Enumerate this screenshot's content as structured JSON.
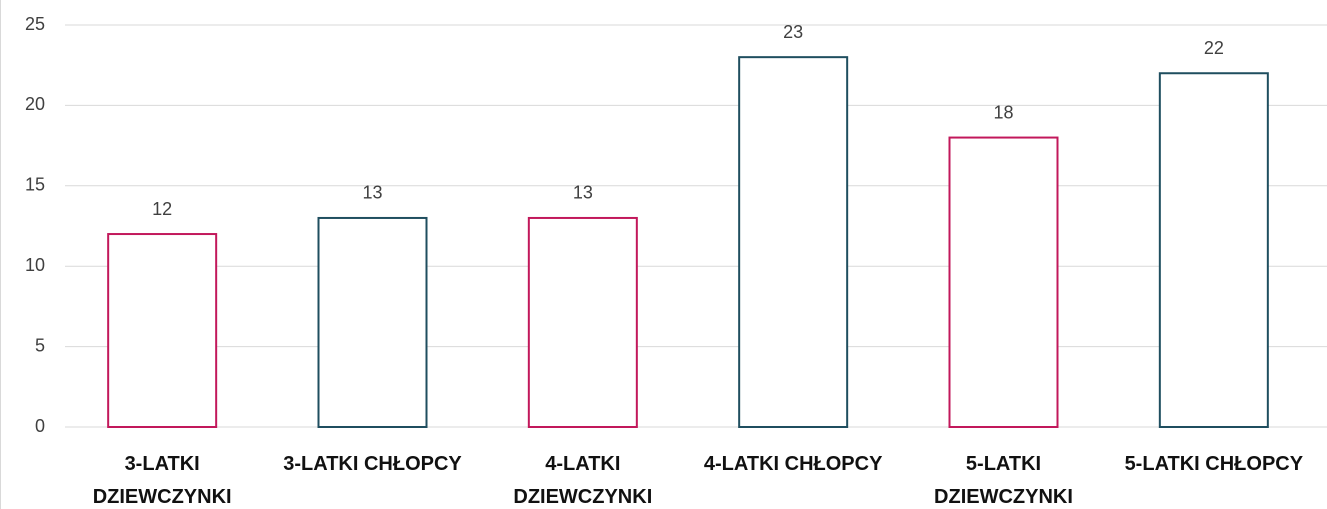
{
  "chart_data": {
    "type": "bar",
    "categories": [
      "3-LATKI\nDZIEWCZYNKI",
      "3-LATKI CHŁOPCY",
      "4-LATKI\nDZIEWCZYNKI",
      "4-LATKI CHŁOPCY",
      "5-LATKI\nDZIEWCZYNKI",
      "5-LATKI CHŁOPCY"
    ],
    "values": [
      12,
      13,
      13,
      23,
      18,
      22
    ],
    "colors": [
      "#c2185b",
      "#1f4e5f",
      "#c2185b",
      "#1f4e5f",
      "#c2185b",
      "#1f4e5f"
    ],
    "ylim": [
      0,
      25
    ],
    "yticks": [
      0,
      5,
      10,
      15,
      20,
      25
    ],
    "grid": true
  }
}
